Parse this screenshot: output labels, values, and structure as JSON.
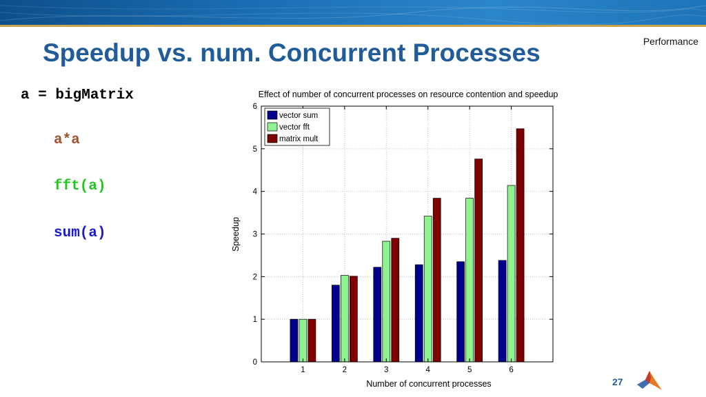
{
  "header": {
    "section": "Performance"
  },
  "title": "Speedup vs. num. Concurrent Processes",
  "code": {
    "assign": {
      "text": "a = bigMatrix",
      "color": "#000000"
    },
    "mult": {
      "text": "a*a",
      "color": "#a0522d"
    },
    "fft": {
      "text": "fft(a)",
      "color": "#1fc61f"
    },
    "sum": {
      "text": "sum(a)",
      "color": "#1a1acc"
    }
  },
  "chart_data": {
    "type": "bar",
    "title": "Effect of number of concurrent processes on resource contention and speedup",
    "xlabel": "Number of concurrent processes",
    "ylabel": "Speedup",
    "categories": [
      "1",
      "2",
      "3",
      "4",
      "5",
      "6"
    ],
    "ylim": [
      0,
      6
    ],
    "yticks": [
      "0",
      "1",
      "2",
      "3",
      "4",
      "5",
      "6"
    ],
    "grid": true,
    "legend": "top-left",
    "series": [
      {
        "name": "vector sum",
        "color": "#00008b",
        "values": [
          1.0,
          1.8,
          2.22,
          2.28,
          2.35,
          2.38
        ]
      },
      {
        "name": "vector fft",
        "color": "#8ef28e",
        "values": [
          1.0,
          2.03,
          2.83,
          3.42,
          3.84,
          4.14
        ]
      },
      {
        "name": "matrix mult",
        "color": "#800000",
        "values": [
          1.0,
          2.01,
          2.9,
          3.84,
          4.76,
          5.47
        ]
      }
    ]
  },
  "footer": {
    "page": "27",
    "logo_icon": "matlab-membrane-icon"
  }
}
